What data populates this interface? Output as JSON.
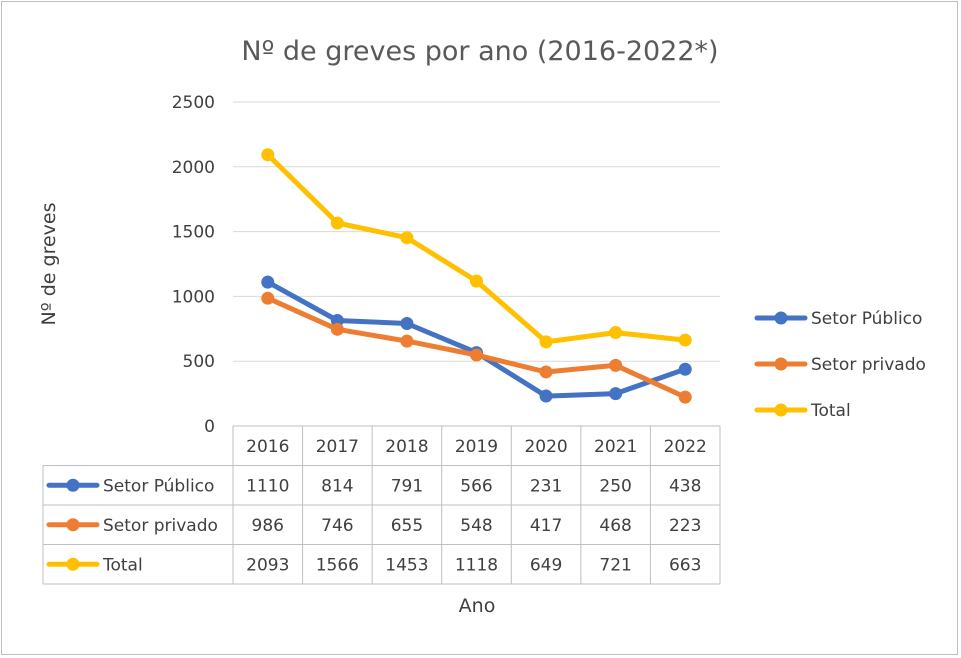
{
  "chart_data": {
    "type": "line",
    "title": "Nº de greves por ano (2016-2022*)",
    "xlabel": "Ano",
    "ylabel": "Nº de greves",
    "ylim": [
      0,
      2500
    ],
    "yticks": [
      "0",
      "500",
      "1000",
      "1500",
      "2000",
      "2500"
    ],
    "grid": true,
    "legend_position": "right",
    "categories": [
      "2016",
      "2017",
      "2018",
      "2019",
      "2020",
      "2021",
      "2022"
    ],
    "series": [
      {
        "name": "Setor Público",
        "color": "#4472C4",
        "values": [
          1110,
          814,
          791,
          566,
          231,
          250,
          438
        ]
      },
      {
        "name": "Setor privado",
        "color": "#ED7D31",
        "values": [
          986,
          746,
          655,
          548,
          417,
          468,
          223
        ]
      },
      {
        "name": "Total",
        "color": "#FFC000",
        "values": [
          2093,
          1566,
          1453,
          1118,
          649,
          721,
          663
        ]
      }
    ],
    "data_table": true
  }
}
